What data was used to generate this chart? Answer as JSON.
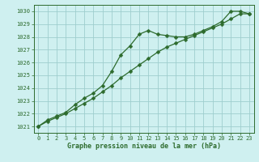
{
  "xlabel": "Graphe pression niveau de la mer (hPa)",
  "bg_color": "#cff0f0",
  "grid_color": "#9ecece",
  "line_color": "#2d6b2d",
  "x_series1": [
    0,
    1,
    2,
    3,
    4,
    5,
    6,
    7,
    8,
    9,
    10,
    11,
    12,
    13,
    14,
    15,
    16,
    17,
    18,
    19,
    20,
    21,
    22,
    23
  ],
  "y_series1": [
    1021.0,
    1021.5,
    1021.8,
    1022.1,
    1022.7,
    1023.2,
    1023.6,
    1024.2,
    1025.3,
    1026.6,
    1027.3,
    1028.2,
    1028.5,
    1028.2,
    1028.1,
    1028.0,
    1028.0,
    1028.2,
    1028.5,
    1028.8,
    1029.2,
    1030.0,
    1030.0,
    1029.8
  ],
  "x_series2": [
    0,
    1,
    2,
    3,
    4,
    5,
    6,
    7,
    8,
    9,
    10,
    11,
    12,
    13,
    14,
    15,
    16,
    17,
    18,
    19,
    20,
    21,
    22,
    23
  ],
  "y_series2": [
    1021.0,
    1021.4,
    1021.7,
    1022.0,
    1022.4,
    1022.8,
    1023.2,
    1023.7,
    1024.2,
    1024.8,
    1025.3,
    1025.8,
    1026.3,
    1026.8,
    1027.2,
    1027.5,
    1027.8,
    1028.1,
    1028.4,
    1028.7,
    1029.0,
    1029.4,
    1029.8,
    1029.8
  ],
  "ylim": [
    1020.5,
    1030.5
  ],
  "xlim": [
    -0.5,
    23.5
  ],
  "yticks": [
    1021,
    1022,
    1023,
    1024,
    1025,
    1026,
    1027,
    1028,
    1029,
    1030
  ],
  "xticks": [
    0,
    1,
    2,
    3,
    4,
    5,
    6,
    7,
    8,
    9,
    10,
    11,
    12,
    13,
    14,
    15,
    16,
    17,
    18,
    19,
    20,
    21,
    22,
    23
  ],
  "tick_fontsize": 5,
  "xlabel_fontsize": 6,
  "marker_size": 2.5,
  "line_width": 0.9
}
